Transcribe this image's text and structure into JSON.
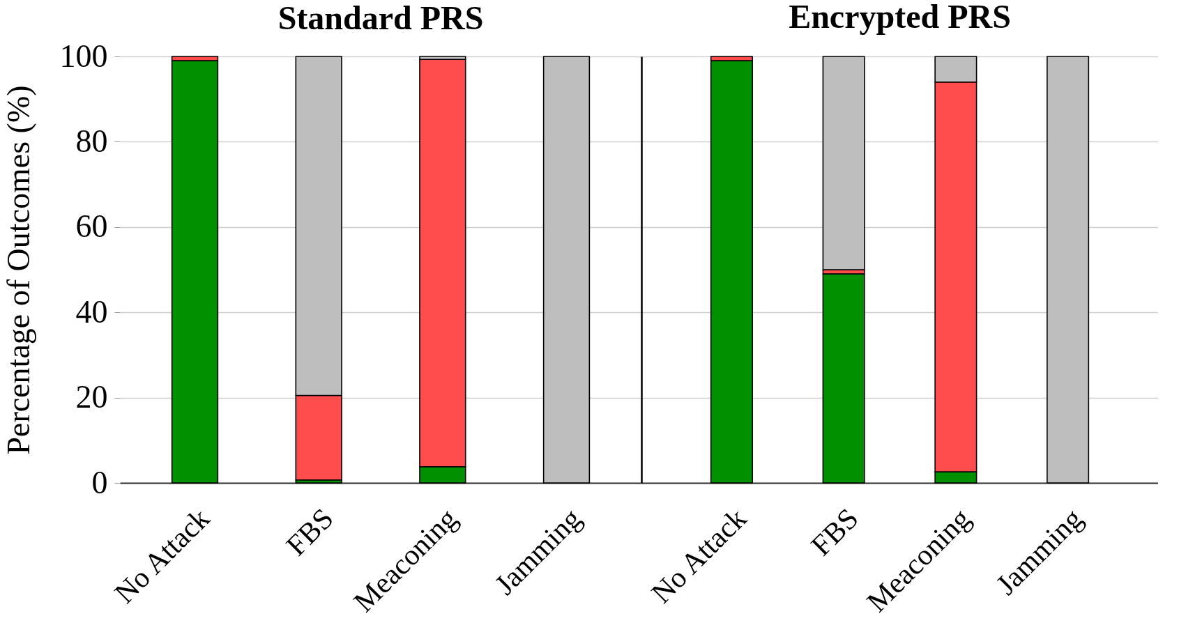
{
  "chart_data": [
    {
      "type": "bar",
      "title": "Standard PRS",
      "ylabel": "Percentage of Outcomes (%)",
      "categories": [
        "No Attack",
        "FBS",
        "Meaconing",
        "Jamming"
      ],
      "series": [
        {
          "color": "#009000",
          "values": [
            99,
            0.7,
            3.8,
            null
          ]
        },
        {
          "color": "#ff4c4c",
          "values": [
            1,
            19.8,
            95.5,
            null
          ]
        },
        {
          "color": "#bebebe",
          "values": [
            null,
            79.5,
            0.7,
            100
          ]
        }
      ],
      "stacked": true,
      "ylim": [
        0,
        100
      ],
      "yticks": [
        0,
        20,
        40,
        60,
        80,
        100
      ],
      "grid": "y",
      "legend": false
    },
    {
      "type": "bar",
      "title": "Encrypted PRS",
      "categories": [
        "No Attack",
        "FBS",
        "Meaconing",
        "Jamming"
      ],
      "series": [
        {
          "color": "#009000",
          "values": [
            99,
            49,
            2.6,
            null
          ]
        },
        {
          "color": "#ff4c4c",
          "values": [
            1,
            1,
            91.4,
            null
          ]
        },
        {
          "color": "#bebebe",
          "values": [
            null,
            50,
            6,
            100
          ]
        }
      ],
      "stacked": true,
      "ylim": [
        0,
        100
      ],
      "yticks": [
        0,
        20,
        40,
        60,
        80,
        100
      ],
      "grid": "y",
      "legend": false,
      "tick_labels": "x"
    }
  ]
}
